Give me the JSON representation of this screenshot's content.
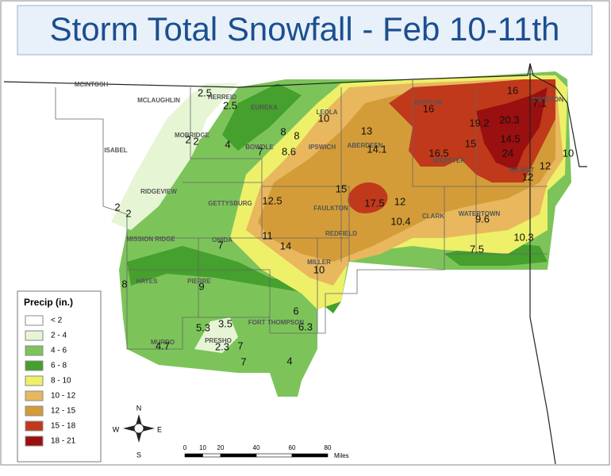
{
  "title": "Storm Total Snowfall - Feb 10-11th",
  "towns": [
    "MCINTOSH",
    "MCLAUGHLIN",
    "HERREID",
    "EUREKA",
    "LEOLA",
    "MOBRIDGE",
    "BOWDLE",
    "IPSWICH",
    "ABERDEEN",
    "BRITTON",
    "WEBSTER",
    "SISSETON",
    "WILMOT",
    "ISABEL",
    "RIDGEVIEW",
    "GETTYSBURG",
    "FAULKTON",
    "CLARK",
    "WATERTOWN",
    "MISSION RIDGE",
    "ONIDA",
    "REDFIELD",
    "MILLER",
    "HAYES",
    "PIERRE",
    "FORT THOMPSON",
    "MURDO",
    "PRESHO"
  ],
  "snowfall_reports": [
    2.5,
    2.5,
    10,
    8,
    8,
    13,
    16,
    16,
    7.1,
    19.2,
    20.3,
    2,
    2,
    4,
    7,
    8.6,
    14.1,
    16.5,
    15,
    14.5,
    24,
    10,
    12,
    12,
    15,
    12.5,
    17.5,
    12,
    2,
    2,
    10.4,
    9.6,
    11,
    14,
    7,
    10.3,
    7.5,
    10,
    8,
    9,
    6,
    6.3,
    5.3,
    3.5,
    4.7,
    2.3,
    7,
    7,
    4
  ],
  "legend": {
    "title": "Precip (in.)",
    "classes": [
      {
        "label": "< 2",
        "color": "#ffffff"
      },
      {
        "label": "2 - 4",
        "color": "#e6f5d4"
      },
      {
        "label": "4 - 6",
        "color": "#7cc45a"
      },
      {
        "label": "6 - 8",
        "color": "#45a02e"
      },
      {
        "label": "8 - 10",
        "color": "#eef06a"
      },
      {
        "label": "10 - 12",
        "color": "#e8b75e"
      },
      {
        "label": "12 - 15",
        "color": "#d39c38"
      },
      {
        "label": "15 - 18",
        "color": "#c0391b"
      },
      {
        "label": "18 - 21",
        "color": "#9a0f0f"
      }
    ]
  },
  "scale_bar": {
    "ticks": [
      0,
      10,
      20,
      40,
      60,
      80
    ],
    "unit": "Miles"
  },
  "compass": {
    "north": "N",
    "south": "S",
    "east": "E",
    "west": "W"
  }
}
